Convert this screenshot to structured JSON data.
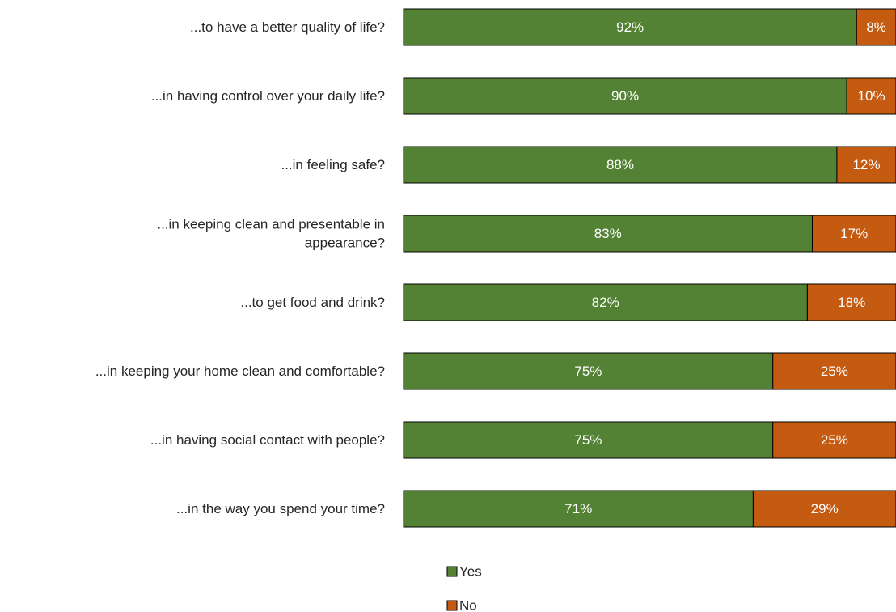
{
  "chart_data": {
    "type": "bar",
    "orientation": "horizontal",
    "stacked": true,
    "title": "",
    "xlabel": "",
    "ylabel": "",
    "xlim": [
      0,
      100
    ],
    "grid": false,
    "legend_position": "bottom",
    "categories": [
      "...to have a better quality of life?",
      "...in having control over your daily life?",
      "...in feeling safe?",
      "...in keeping clean and presentable in appearance?",
      "...to get food and drink?",
      "...in keeping your home clean and comfortable?",
      "...in having social contact with people?",
      "...in the way you spend your time?"
    ],
    "category_lines": [
      [
        "...to have a better quality of life?"
      ],
      [
        "...in having control over your daily life?"
      ],
      [
        "...in feeling safe?"
      ],
      [
        "...in keeping clean and presentable in",
        "appearance?"
      ],
      [
        "...to get food and drink?"
      ],
      [
        "...in keeping your home clean and comfortable?"
      ],
      [
        "...in having social contact with people?"
      ],
      [
        "...in the way you spend your time?"
      ]
    ],
    "series": [
      {
        "name": "Yes",
        "color": "#548235",
        "values": [
          92,
          90,
          88,
          83,
          82,
          75,
          75,
          71
        ],
        "labels": [
          "92%",
          "90%",
          "88%",
          "83%",
          "82%",
          "75%",
          "75%",
          "71%"
        ]
      },
      {
        "name": "No",
        "color": "#C55A11",
        "values": [
          8,
          10,
          12,
          17,
          18,
          25,
          25,
          29
        ],
        "labels": [
          "8%",
          "10%",
          "12%",
          "17%",
          "18%",
          "25%",
          "25%",
          "29%"
        ]
      }
    ]
  }
}
